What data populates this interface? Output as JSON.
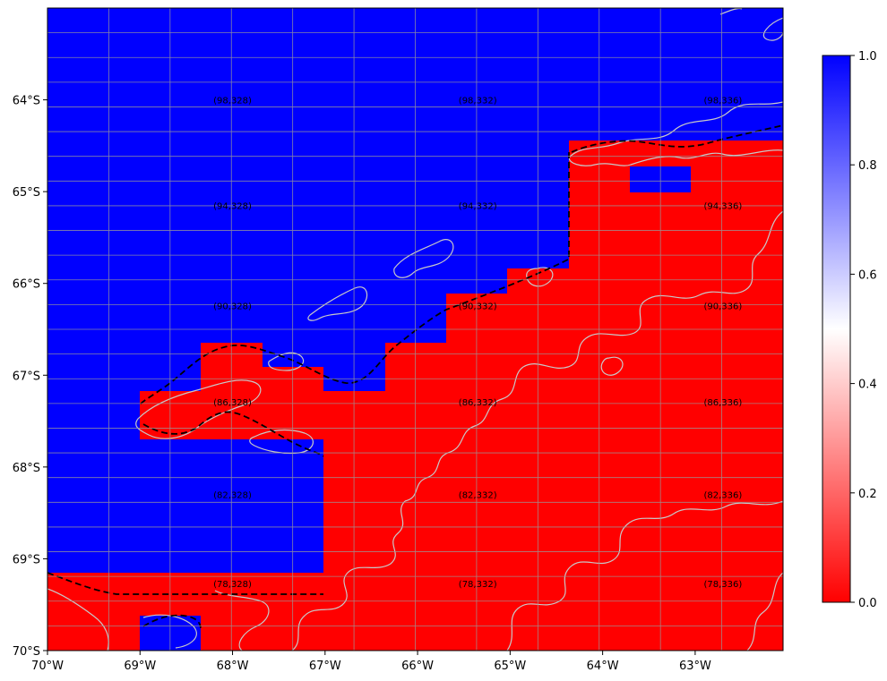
{
  "map": {
    "type": "gridded-binary-mask",
    "lon_range": [
      -70,
      -62.05
    ],
    "lat_range": [
      -70,
      -63.0
    ],
    "x_ticks": [
      "70°W",
      "69°W",
      "68°W",
      "67°W",
      "66°W",
      "65°W",
      "64°W",
      "63°W"
    ],
    "x_tick_values": [
      -70,
      -69,
      -68,
      -67,
      -66,
      -65,
      -64,
      -63
    ],
    "y_ticks": [
      "64°S",
      "65°S",
      "66°S",
      "67°S",
      "68°S",
      "69°S",
      "70°S"
    ],
    "y_tick_values": [
      -64,
      -65,
      -66,
      -67,
      -68,
      -69,
      -70
    ],
    "colors": {
      "one": "#0000ff",
      "zero": "#ff0000",
      "grid": "#9a9a9a",
      "coast": "#c8c8c8"
    },
    "cell_labels": [
      {
        "text": "(98,328)",
        "lon": -68.0,
        "lat": -64.0
      },
      {
        "text": "(98,332)",
        "lon": -65.35,
        "lat": -64.0
      },
      {
        "text": "(98,336)",
        "lon": -62.7,
        "lat": -64.0
      },
      {
        "text": "(94,328)",
        "lon": -68.0,
        "lat": -65.15
      },
      {
        "text": "(94,332)",
        "lon": -65.35,
        "lat": -65.15
      },
      {
        "text": "(94,336)",
        "lon": -62.7,
        "lat": -65.15
      },
      {
        "text": "(90,328)",
        "lon": -68.0,
        "lat": -66.24
      },
      {
        "text": "(90,332)",
        "lon": -65.35,
        "lat": -66.24
      },
      {
        "text": "(90,336)",
        "lon": -62.7,
        "lat": -66.24
      },
      {
        "text": "(86,328)",
        "lon": -68.0,
        "lat": -67.29
      },
      {
        "text": "(86,332)",
        "lon": -65.35,
        "lat": -67.29
      },
      {
        "text": "(86,336)",
        "lon": -62.7,
        "lat": -67.29
      },
      {
        "text": "(82,328)",
        "lon": -68.0,
        "lat": -68.3
      },
      {
        "text": "(82,332)",
        "lon": -65.35,
        "lat": -68.3
      },
      {
        "text": "(82,336)",
        "lon": -62.7,
        "lat": -68.3
      },
      {
        "text": "(78,328)",
        "lon": -68.0,
        "lat": -69.27
      },
      {
        "text": "(78,332)",
        "lon": -65.35,
        "lat": -69.27
      },
      {
        "text": "(78,336)",
        "lon": -62.7,
        "lat": -69.27
      }
    ]
  },
  "colorbar": {
    "ticks": [
      "0.0",
      "0.2",
      "0.4",
      "0.6",
      "0.8",
      "1.0"
    ],
    "tick_values": [
      0.0,
      0.2,
      0.4,
      0.6,
      0.8,
      1.0
    ],
    "stops": [
      {
        "v": 0,
        "c": "#ff0000"
      },
      {
        "v": 0.5,
        "c": "#ffffff"
      },
      {
        "v": 1,
        "c": "#0000ff"
      }
    ]
  }
}
